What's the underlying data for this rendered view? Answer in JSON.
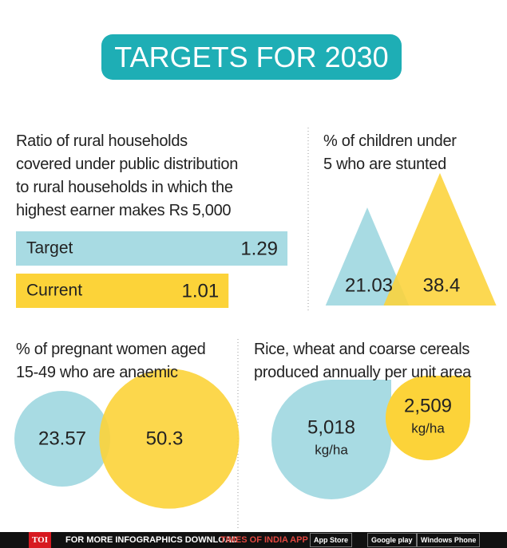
{
  "title": "TARGETS FOR 2030",
  "chart_data": [
    {
      "type": "bar",
      "title": "Ratio of rural households\ncovered under public distribution\nto rural households in which the\nhighest earner makes Rs 5,000",
      "categories": [
        "Target",
        "Current"
      ],
      "values": [
        1.29,
        1.01
      ],
      "colors": [
        "#a8dbe3",
        "#fcd339"
      ]
    },
    {
      "type": "triangle",
      "title": "% of children under\n5 who are stunted",
      "values": [
        21.03,
        38.4
      ],
      "colors": [
        "#a8dbe3",
        "#fcd339"
      ]
    },
    {
      "type": "circle",
      "title": "% of pregnant women aged\n15-49 who are anaemic",
      "values": [
        23.57,
        50.3
      ],
      "colors": [
        "#a8dbe3",
        "#fcd339"
      ]
    },
    {
      "type": "drop",
      "title": "Rice, wheat and coarse cereals\nproduced annually per unit area",
      "values": [
        5018,
        2509
      ],
      "value_labels": [
        "5,018",
        "2,509"
      ],
      "unit": "kg/ha",
      "colors": [
        "#a8dbe3",
        "#fcd339"
      ]
    }
  ],
  "footer": {
    "logo": "TOI",
    "text": "FOR MORE INFOGRAPHICS DOWNLOAD",
    "app": "TIMES OF INDIA APP",
    "badges": [
      "App Store",
      "Google play",
      "Windows Phone"
    ]
  }
}
